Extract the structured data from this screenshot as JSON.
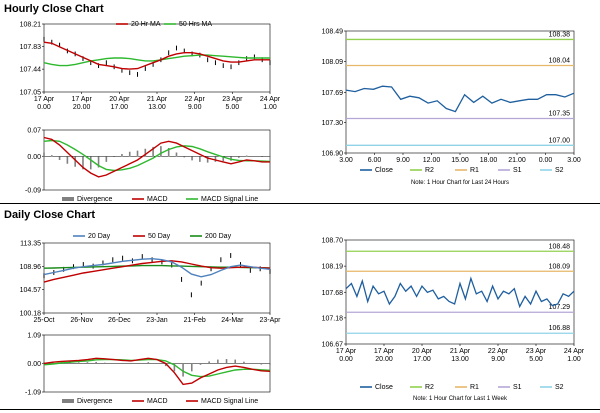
{
  "colors": {
    "ma20": "#c00000",
    "ma50": "#2eb82e",
    "ma200": "#1a8a1a",
    "day20": "#4f81bd",
    "close": "#1f5f9f",
    "r2": "#92d050",
    "r1": "#e6b86a",
    "s1": "#b4a7d6",
    "s2": "#8fd3e8",
    "macd": "#c00000",
    "signal": "#2eb82e",
    "price": "#000000",
    "divergence": "#808080"
  },
  "sections": {
    "hourly": "Hourly Close Chart",
    "daily": "Daily Close Chart"
  },
  "chart_data": [
    {
      "id": "hourly-price",
      "type": "line",
      "legend": [
        "20 Hr MA",
        "50 Hrs MA"
      ],
      "yticks": [
        "108.21",
        "107.83",
        "107.44",
        "107.05"
      ],
      "xticks": [
        [
          "17 Apr",
          "0.00"
        ],
        [
          "17 Apr",
          "20.00"
        ],
        [
          "20 Apr",
          "17.00"
        ],
        [
          "21 Apr",
          "13.00"
        ],
        [
          "22 Apr",
          "9.00"
        ],
        [
          "23 Apr",
          "5.00"
        ],
        [
          "24 Apr",
          "1.00"
        ]
      ],
      "ylim": [
        107.05,
        108.21
      ],
      "series": [
        {
          "name": "price",
          "values": [
            107.95,
            107.9,
            107.85,
            107.75,
            107.7,
            107.62,
            107.55,
            107.5,
            107.55,
            107.48,
            107.42,
            107.38,
            107.35,
            107.45,
            107.52,
            107.6,
            107.72,
            107.8,
            107.75,
            107.7,
            107.68,
            107.6,
            107.55,
            107.5,
            107.48,
            107.55,
            107.62,
            107.65,
            107.6,
            107.55
          ]
        },
        {
          "name": "20 Hr MA",
          "values": [
            107.9,
            107.88,
            107.82,
            107.76,
            107.7,
            107.64,
            107.58,
            107.52,
            107.5,
            107.48,
            107.45,
            107.44,
            107.45,
            107.5,
            107.55,
            107.6,
            107.66,
            107.7,
            107.72,
            107.72,
            107.7,
            107.66,
            107.62,
            107.58,
            107.56,
            107.56,
            107.58,
            107.6,
            107.6,
            107.6
          ]
        },
        {
          "name": "50 Hrs MA",
          "values": [
            107.55,
            107.52,
            107.5,
            107.5,
            107.52,
            107.55,
            107.58,
            107.6,
            107.62,
            107.63,
            107.63,
            107.62,
            107.6,
            107.58,
            107.58,
            107.6,
            107.62,
            107.64,
            107.66,
            107.67,
            107.68,
            107.68,
            107.67,
            107.66,
            107.65,
            107.64,
            107.63,
            107.63,
            107.63,
            107.63
          ]
        }
      ]
    },
    {
      "id": "hourly-macd",
      "type": "line",
      "legend": [
        "Divergence",
        "MACD",
        "MACD Signal Line"
      ],
      "yticks": [
        "0.07",
        "0.00",
        "-0.09"
      ],
      "ylim": [
        -0.09,
        0.07
      ],
      "series": [
        {
          "name": "MACD",
          "values": [
            0.05,
            0.045,
            0.03,
            0.01,
            -0.01,
            -0.03,
            -0.045,
            -0.055,
            -0.05,
            -0.04,
            -0.03,
            -0.02,
            -0.01,
            0.005,
            0.02,
            0.035,
            0.04,
            0.035,
            0.025,
            0.015,
            0.005,
            -0.005,
            -0.01,
            -0.015,
            -0.02,
            -0.015,
            -0.01,
            -0.012,
            -0.015,
            -0.015
          ]
        },
        {
          "name": "MACD Signal Line",
          "values": [
            0.04,
            0.042,
            0.04,
            0.03,
            0.018,
            0.005,
            -0.01,
            -0.025,
            -0.035,
            -0.038,
            -0.036,
            -0.032,
            -0.025,
            -0.015,
            -0.005,
            0.008,
            0.018,
            0.025,
            0.028,
            0.026,
            0.02,
            0.012,
            0.005,
            -0.002,
            -0.008,
            -0.011,
            -0.012,
            -0.012,
            -0.013,
            -0.014
          ]
        },
        {
          "name": "Divergence",
          "values": [
            0.01,
            0.003,
            -0.01,
            -0.02,
            -0.028,
            -0.035,
            -0.035,
            -0.03,
            -0.015,
            -0.002,
            0.006,
            0.012,
            0.015,
            0.02,
            0.025,
            0.027,
            0.022,
            0.01,
            -0.003,
            -0.011,
            -0.015,
            -0.017,
            -0.015,
            -0.013,
            -0.012,
            -0.004,
            0.002,
            0.0,
            -0.002,
            -0.001
          ]
        }
      ]
    },
    {
      "id": "hourly-levels",
      "type": "line",
      "yticks": [
        "108.49",
        "108.09",
        "107.69",
        "107.30",
        "106.90"
      ],
      "xticks": [
        "3.00",
        "6.00",
        "9.00",
        "12.00",
        "15.00",
        "18.00",
        "21.00",
        "0.00",
        "3.00"
      ],
      "ylim": [
        106.9,
        108.49
      ],
      "levels": [
        {
          "name": "R2",
          "value": 108.38,
          "label": "108.38"
        },
        {
          "name": "R1",
          "value": 108.04,
          "label": "108.04"
        },
        {
          "name": "S1",
          "value": 107.35,
          "label": "107.35"
        },
        {
          "name": "S2",
          "value": 107.0,
          "label": "107.00"
        }
      ],
      "close": [
        107.72,
        107.7,
        107.74,
        107.73,
        107.77,
        107.76,
        107.6,
        107.64,
        107.62,
        107.55,
        107.58,
        107.48,
        107.44,
        107.66,
        107.56,
        107.64,
        107.55,
        107.6,
        107.56,
        107.58,
        107.6,
        107.6,
        107.66,
        107.66,
        107.63,
        107.68
      ],
      "legend": [
        "Close",
        "R2",
        "R1",
        "S1",
        "S2"
      ],
      "note": "Note: 1 Hour Chart for Last 24 Hours"
    },
    {
      "id": "daily-price",
      "type": "line",
      "legend": [
        "20 Day",
        "50 Day",
        "200 Day"
      ],
      "yticks": [
        "113.35",
        "108.96",
        "104.57",
        "100.18"
      ],
      "xticks": [
        "25-Oct",
        "26-Nov",
        "26-Dec",
        "23-Jan",
        "21-Feb",
        "24-Mar",
        "23-Apr"
      ],
      "ylim": [
        100.18,
        113.35
      ],
      "series": [
        {
          "name": "price",
          "values": [
            107.2,
            107.8,
            108.4,
            108.9,
            109.3,
            109.0,
            109.6,
            110.2,
            110.5,
            110.0,
            110.8,
            110.2,
            109.8,
            109.2,
            106.5,
            103.6,
            105.8,
            108.5,
            110.2,
            111.0,
            109.3,
            108.2,
            108.5,
            108.0
          ]
        },
        {
          "name": "20 Day",
          "values": [
            107.4,
            107.8,
            108.2,
            108.6,
            108.9,
            109.1,
            109.3,
            109.6,
            109.9,
            110.1,
            110.3,
            110.4,
            110.2,
            109.8,
            108.8,
            107.5,
            107.0,
            107.4,
            108.2,
            108.9,
            109.2,
            108.9,
            108.6,
            108.4
          ]
        },
        {
          "name": "50 Day",
          "values": [
            106.0,
            106.5,
            106.9,
            107.3,
            107.7,
            108.0,
            108.3,
            108.6,
            108.9,
            109.2,
            109.5,
            109.7,
            109.9,
            110.0,
            109.8,
            109.4,
            109.0,
            108.7,
            108.6,
            108.7,
            108.8,
            108.8,
            108.7,
            108.6
          ]
        },
        {
          "name": "200 Day",
          "values": [
            108.6,
            108.65,
            108.7,
            108.75,
            108.8,
            108.85,
            108.9,
            108.95,
            109.0,
            109.05,
            109.1,
            109.1,
            109.1,
            109.05,
            109.0,
            108.95,
            108.9,
            108.85,
            108.8,
            108.8,
            108.75,
            108.7,
            108.7,
            108.65
          ]
        }
      ]
    },
    {
      "id": "daily-macd",
      "type": "line",
      "legend": [
        "Divergence",
        "MACD",
        "MACD Signal Line"
      ],
      "yticks": [
        "1.09",
        "0.00",
        "-1.09"
      ],
      "ylim": [
        -1.09,
        1.09
      ],
      "series": [
        {
          "name": "MACD",
          "values": [
            0.0,
            0.05,
            0.08,
            0.1,
            0.12,
            0.15,
            0.2,
            0.18,
            0.15,
            0.12,
            0.1,
            0.15,
            0.2,
            0.15,
            0.0,
            -0.35,
            -0.8,
            -0.75,
            -0.55,
            -0.4,
            -0.25,
            -0.15,
            -0.1,
            -0.15,
            -0.22,
            -0.28,
            -0.3
          ]
        },
        {
          "name": "MACD Signal Line",
          "values": [
            -0.05,
            -0.02,
            0.02,
            0.05,
            0.08,
            0.1,
            0.14,
            0.15,
            0.15,
            0.14,
            0.12,
            0.13,
            0.15,
            0.15,
            0.1,
            -0.05,
            -0.3,
            -0.45,
            -0.5,
            -0.48,
            -0.4,
            -0.32,
            -0.25,
            -0.22,
            -0.22,
            -0.24,
            -0.26
          ]
        },
        {
          "name": "Divergence",
          "values": [
            0.05,
            0.07,
            0.06,
            0.05,
            0.04,
            0.05,
            0.06,
            0.03,
            0.0,
            -0.02,
            -0.02,
            0.02,
            0.05,
            0.0,
            -0.1,
            -0.3,
            -0.5,
            -0.3,
            -0.05,
            0.08,
            0.15,
            0.17,
            0.15,
            0.07,
            0.0,
            -0.04,
            -0.04
          ]
        }
      ]
    },
    {
      "id": "daily-levels",
      "type": "line",
      "yticks": [
        "108.70",
        "108.19",
        "107.68",
        "107.18",
        "106.67"
      ],
      "xticks": [
        [
          "17 Apr",
          "0.00"
        ],
        [
          "17 Apr",
          "20.00"
        ],
        [
          "20 Apr",
          "17.00"
        ],
        [
          "21 Apr",
          "13.00"
        ],
        [
          "22 Apr",
          "9.00"
        ],
        [
          "23 Apr",
          "5.00"
        ],
        [
          "24 Apr",
          "1.00"
        ]
      ],
      "ylim": [
        106.67,
        108.7
      ],
      "levels": [
        {
          "name": "R2",
          "value": 108.48,
          "label": "108.48"
        },
        {
          "name": "R1",
          "value": 108.09,
          "label": "108.09"
        },
        {
          "name": "S1",
          "value": 107.29,
          "label": "107.29"
        },
        {
          "name": "S2",
          "value": 106.88,
          "label": "106.88"
        }
      ],
      "close": [
        107.75,
        107.85,
        107.6,
        107.9,
        107.5,
        107.8,
        107.65,
        107.7,
        107.45,
        107.6,
        107.85,
        107.7,
        107.8,
        107.6,
        107.8,
        107.68,
        107.72,
        107.55,
        107.6,
        107.5,
        107.45,
        107.85,
        107.55,
        107.95,
        107.65,
        107.7,
        107.5,
        107.8,
        107.55,
        107.7,
        107.65,
        107.75,
        107.4,
        107.6,
        107.45,
        107.7,
        107.5,
        107.55,
        107.42,
        107.45,
        107.65,
        107.6,
        107.7
      ],
      "legend": [
        "Close",
        "R2",
        "R1",
        "S1",
        "S2"
      ],
      "note": "Note: 1 Hour Chart for Last 1 Week"
    }
  ]
}
